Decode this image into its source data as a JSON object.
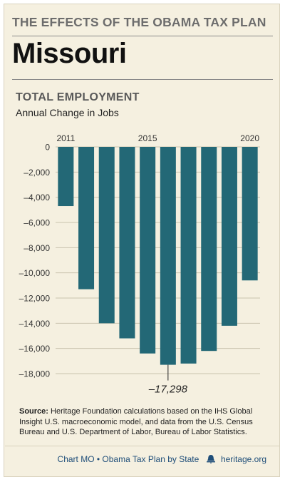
{
  "header": {
    "supertitle": "THE EFFECTS OF THE OBAMA TAX PLAN",
    "state": "Missouri"
  },
  "chart_data": {
    "type": "bar",
    "title": "TOTAL EMPLOYMENT",
    "subtitle": "Annual Change in Jobs",
    "categories": [
      "2011",
      "2012",
      "2013",
      "2014",
      "2015",
      "2016",
      "2017",
      "2018",
      "2019",
      "2020"
    ],
    "x_tick_labels": [
      "2011",
      "2015",
      "2020"
    ],
    "values": [
      -4700,
      -11300,
      -14000,
      -15200,
      -16400,
      -17298,
      -17200,
      -16200,
      -14200,
      -10600
    ],
    "ylim": [
      -18000,
      0
    ],
    "y_ticks": [
      0,
      -2000,
      -4000,
      -6000,
      -8000,
      -10000,
      -12000,
      -14000,
      -16000,
      -18000
    ],
    "y_tick_labels": [
      "0",
      "–2,000",
      "–4,000",
      "–6,000",
      "–8,000",
      "–10,000",
      "–12,000",
      "–14,000",
      "–16,000",
      "–18,000"
    ],
    "annotation": {
      "category": "2016",
      "label": "–17,298"
    },
    "grid": true,
    "bar_color": "#236876"
  },
  "source": {
    "label": "Source:",
    "text": "Heritage Foundation calculations based on the IHS Global Insight U.S. macroeconomic model, and data from the U.S. Census Bureau and U.S. Department of Labor, Bureau of Labor Statistics."
  },
  "footer": {
    "text": "Chart MO • Obama Tax Plan by State",
    "logo_icon": "heritage-bell-icon",
    "site": "heritage.org"
  }
}
